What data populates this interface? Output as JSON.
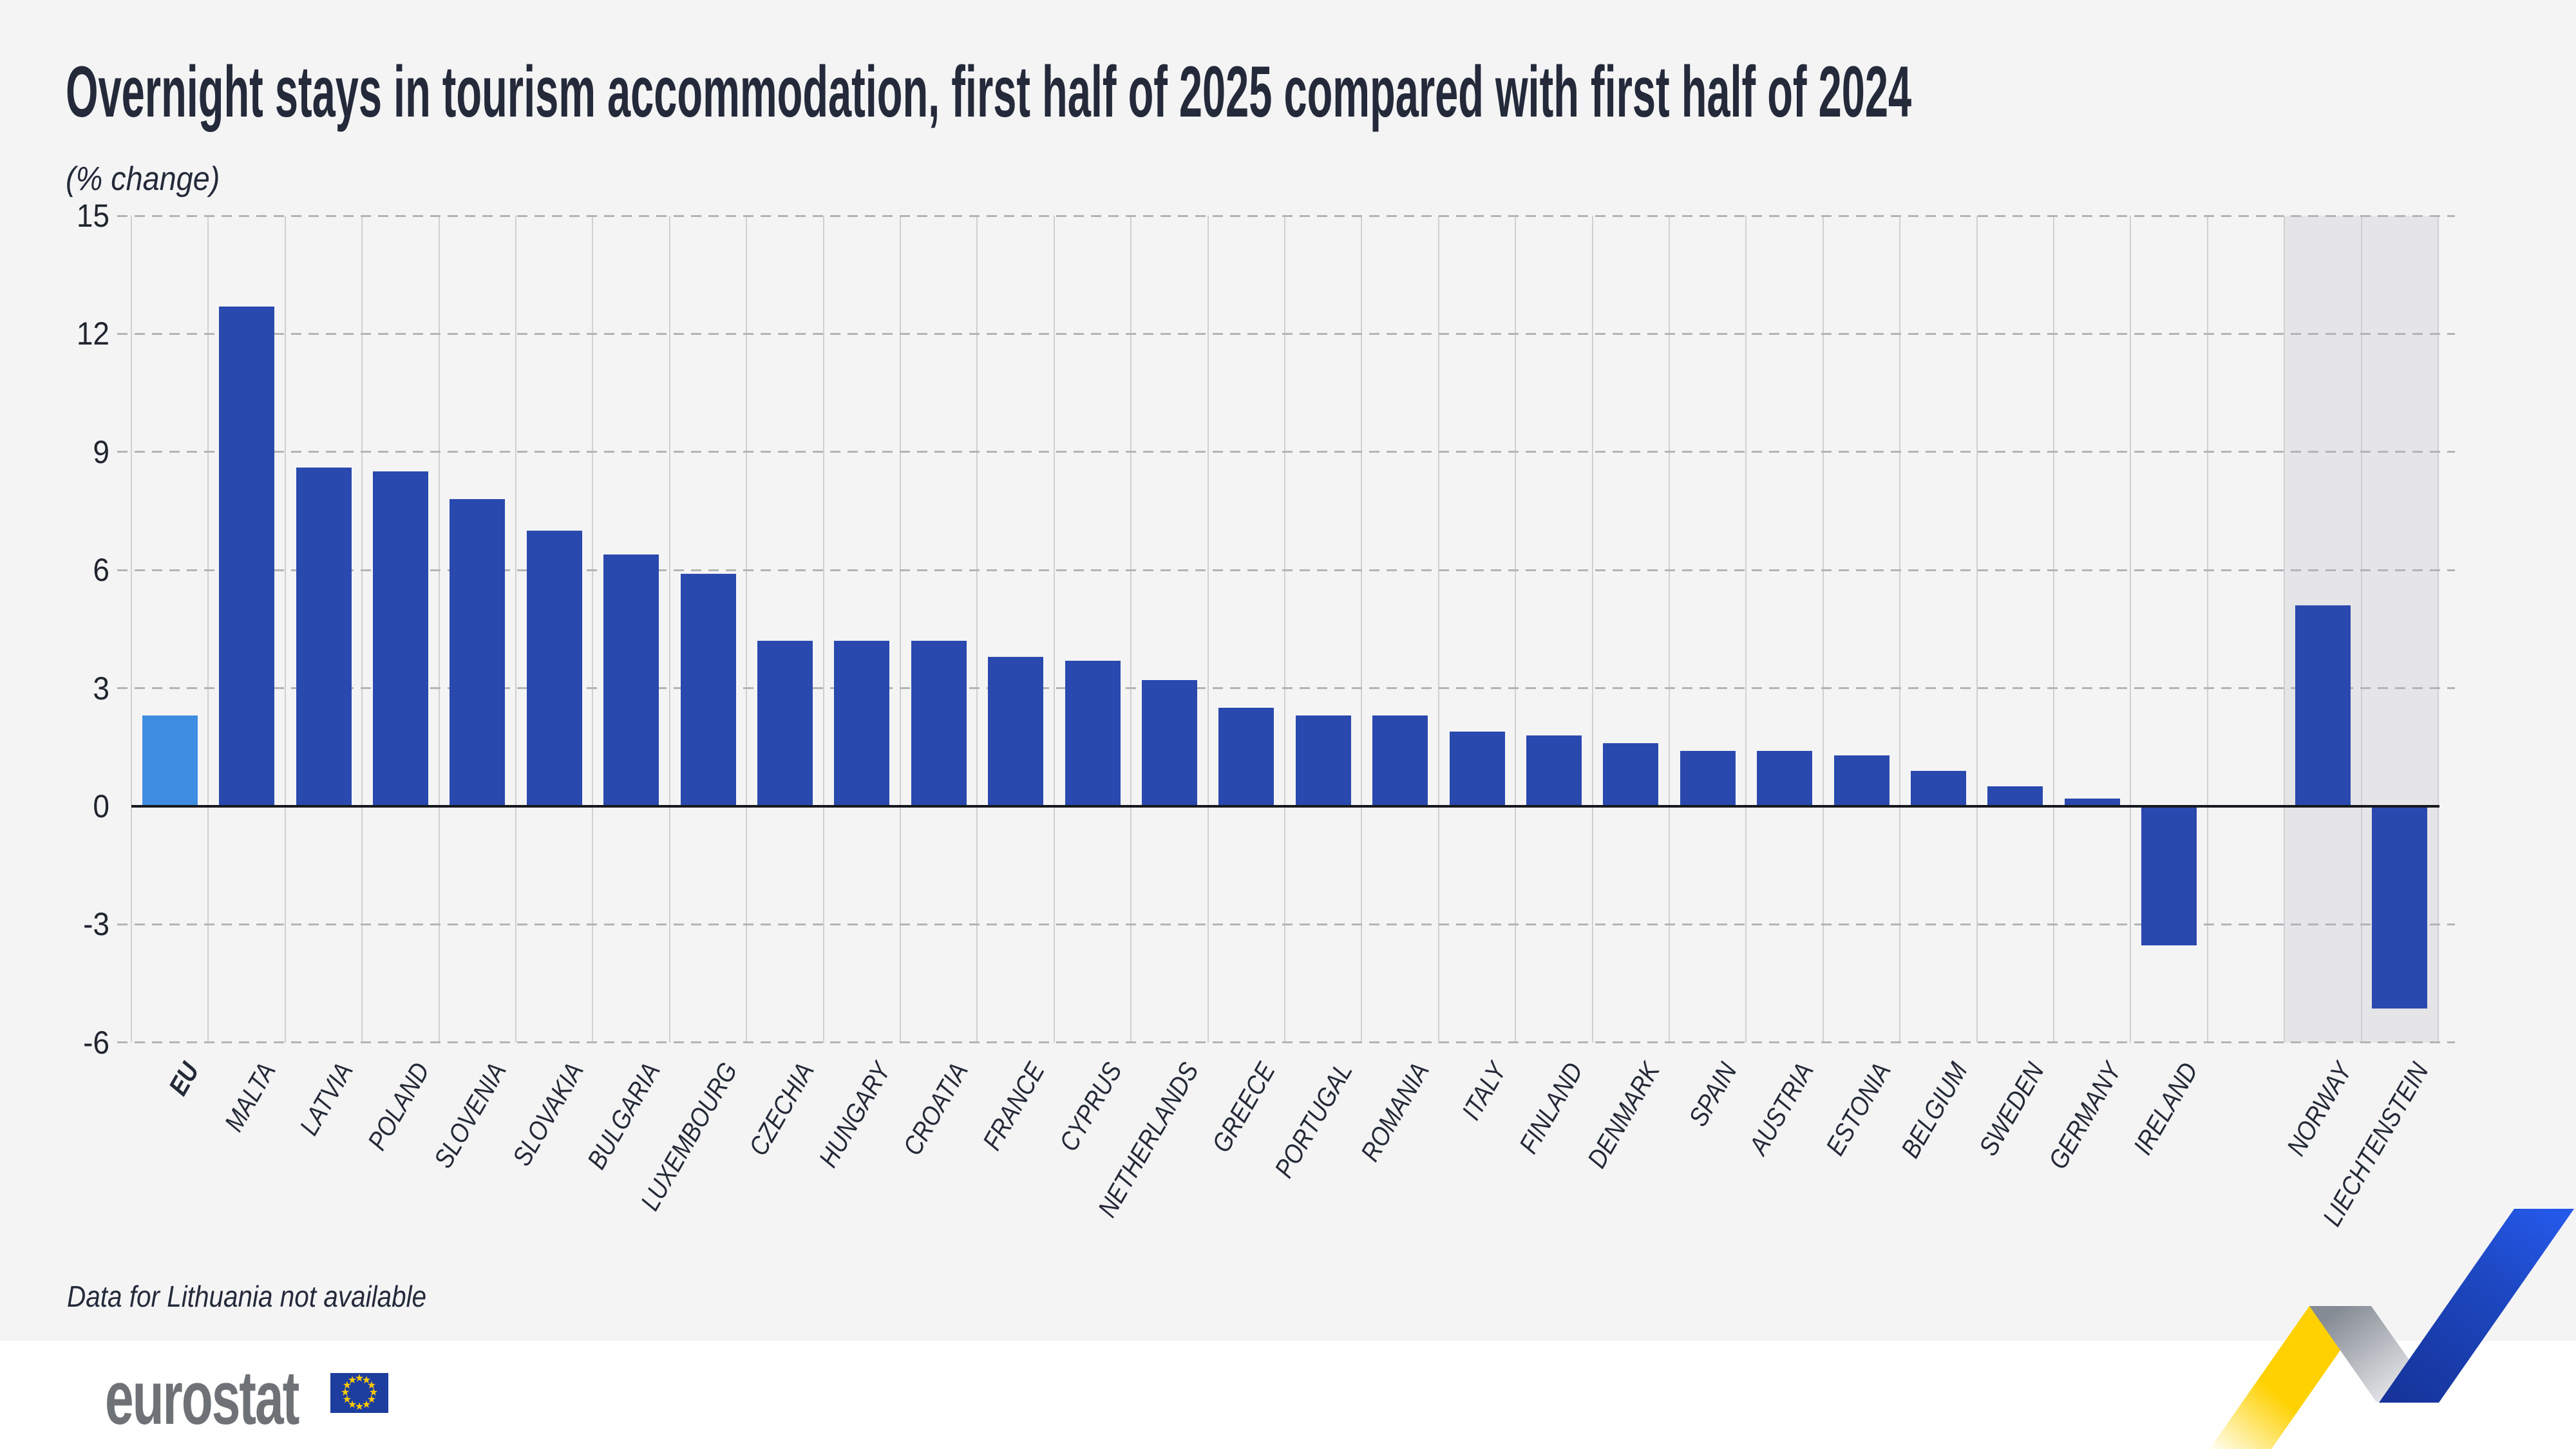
{
  "page": {
    "title": "Overnight stays in tourism accommodation, first half of 2025 compared with first half of 2024",
    "subtitle": "(% change)",
    "footnote": "Data for Lithuania not available"
  },
  "logo": {
    "brand": "eurostat"
  },
  "chart_data": {
    "type": "bar",
    "title": "Overnight stays in tourism accommodation, first half of 2025 compared with first half of 2024",
    "ylabel": "% change",
    "ylim": [
      -6,
      15
    ],
    "yticks": [
      15,
      12,
      9,
      6,
      3,
      0,
      -3,
      -6
    ],
    "grid": "horizontal-dashed",
    "legend": "none",
    "colors": {
      "bar": "#2a49ae",
      "eu_bar": "#3f8de2",
      "efta_band": "#e5e5e7",
      "background": "#f4f4f5",
      "zero_line": "#17191f",
      "text": "#242a3a"
    },
    "bars": [
      {
        "label": "EU",
        "value": 2.3,
        "style": "eu"
      },
      {
        "label": "MALTA",
        "value": 12.7
      },
      {
        "label": "LATVIA",
        "value": 8.6
      },
      {
        "label": "POLAND",
        "value": 8.5
      },
      {
        "label": "SLOVENIA",
        "value": 7.8
      },
      {
        "label": "SLOVAKIA",
        "value": 7.0
      },
      {
        "label": "BULGARIA",
        "value": 6.4
      },
      {
        "label": "LUXEMBOURG",
        "value": 5.9
      },
      {
        "label": "CZECHIA",
        "value": 4.2
      },
      {
        "label": "HUNGARY",
        "value": 4.2
      },
      {
        "label": "CROATIA",
        "value": 4.2
      },
      {
        "label": "FRANCE",
        "value": 3.8
      },
      {
        "label": "CYPRUS",
        "value": 3.7
      },
      {
        "label": "NETHERLANDS",
        "value": 3.2
      },
      {
        "label": "GREECE",
        "value": 2.5
      },
      {
        "label": "PORTUGAL",
        "value": 2.3
      },
      {
        "label": "ROMANIA",
        "value": 2.3
      },
      {
        "label": "ITALY",
        "value": 1.9
      },
      {
        "label": "FINLAND",
        "value": 1.8
      },
      {
        "label": "DENMARK",
        "value": 1.6
      },
      {
        "label": "SPAIN",
        "value": 1.4
      },
      {
        "label": "AUSTRIA",
        "value": 1.4
      },
      {
        "label": "ESTONIA",
        "value": 1.3
      },
      {
        "label": "BELGIUM",
        "value": 0.9
      },
      {
        "label": "SWEDEN",
        "value": 0.5
      },
      {
        "label": "GERMANY",
        "value": 0.2
      },
      {
        "label": "IRELAND",
        "value": -3.5
      },
      {
        "label": "",
        "gap": true
      },
      {
        "label": "NORWAY",
        "value": 5.1,
        "shaded": true
      },
      {
        "label": "LIECHTENSTEIN",
        "value": -5.1,
        "shaded": true
      }
    ]
  }
}
